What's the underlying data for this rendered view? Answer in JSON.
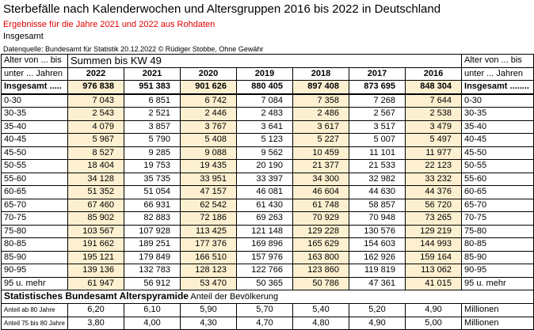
{
  "header": {
    "title": "Sterbefälle nach Kalenderwochen und Altersgruppen 2016 bis 2022 in Deutschland",
    "subtitle": "Ergebnisse für die Jahre 2021 und 2022 aus Rohdaten",
    "label": "Insgesamt",
    "source": "Datenquelle: Bundesamt für Statistik 20.12.2022 © Rüdiger Stobbe, Ohne Gewähr"
  },
  "table": {
    "corner_top": "Alter von ... bis",
    "corner_bottom": "unter ... Jahren",
    "group": "Summen bis KW 49",
    "years": [
      "2022",
      "2021",
      "2020",
      "2019",
      "2018",
      "2017",
      "2016"
    ],
    "right_top": "Alter von ... bis",
    "right_bottom": "unter ... Jahren",
    "rows": [
      [
        "Insgesamt .....",
        "976 838",
        "951 383",
        "901 626",
        "880 405",
        "897 408",
        "873 695",
        "848 304",
        "Insgesamt ........"
      ],
      [
        "0-30",
        "7 043",
        "6 851",
        "6 742",
        "7 084",
        "7 358",
        "7 268",
        "7 644",
        "0-30"
      ],
      [
        "30-35",
        "2 543",
        "2 521",
        "2 446",
        "2 483",
        "2 486",
        "2 567",
        "2 538",
        "30-35"
      ],
      [
        "35-40",
        "4 079",
        "3 857",
        "3 767",
        "3 641",
        "3 617",
        "3 517",
        "3 479",
        "35-40"
      ],
      [
        "40-45",
        "5 967",
        "5 790",
        "5 408",
        "5 123",
        "5 227",
        "5 007",
        "5 497",
        "40-45"
      ],
      [
        "45-50",
        "8 527",
        "9 285",
        "9 088",
        "9 562",
        "10 459",
        "11 101",
        "11 977",
        "45-50"
      ],
      [
        "50-55",
        "18 404",
        "19 753",
        "19 435",
        "20 190",
        "21 377",
        "21 533",
        "22 123",
        "50-55"
      ],
      [
        "55-60",
        "34 128",
        "35 735",
        "33 951",
        "33 397",
        "34 300",
        "32 982",
        "33 232",
        "55-60"
      ],
      [
        "60-65",
        "51 352",
        "51 054",
        "47 157",
        "46 081",
        "46 604",
        "44 630",
        "44 376",
        "60-65"
      ],
      [
        "65-70",
        "67 460",
        "66 931",
        "62 542",
        "61 430",
        "61 748",
        "58 857",
        "56 720",
        "65-70"
      ],
      [
        "70-75",
        "85 902",
        "82 883",
        "72 186",
        "69 263",
        "70 929",
        "70 948",
        "73 265",
        "70-75"
      ],
      [
        "75-80",
        "103 567",
        "107 928",
        "113 425",
        "121 148",
        "129 228",
        "130 576",
        "129 219",
        "75-80"
      ],
      [
        "80-85",
        "191 662",
        "189 251",
        "177 376",
        "169 896",
        "165 629",
        "154 603",
        "144 993",
        "80-85"
      ],
      [
        "85-90",
        "195 121",
        "179 849",
        "166 510",
        "157 976",
        "163 800",
        "162 926",
        "159 164",
        "85-90"
      ],
      [
        "90-95",
        "139 136",
        "132 783",
        "128 123",
        "122 766",
        "123 860",
        "119 819",
        "113 062",
        "90-95"
      ],
      [
        "95 u. mehr",
        "61 947",
        "56 912",
        "53 470",
        "50 365",
        "50 786",
        "47 361",
        "41 015",
        "95 u. mehr"
      ]
    ]
  },
  "pyramid": {
    "title": "Statistisches Bundesamt Alterspyramide",
    "subtitle": "Anteil der Bevölkerung",
    "rows": [
      [
        "Anteil ab 80 Jahre",
        "6,20",
        "6,10",
        "5,90",
        "5,70",
        "5,40",
        "5,20",
        "4,90",
        "Millionen"
      ],
      [
        "Anteil 75 bis 80 Jahre",
        "3,80",
        "4,00",
        "4,30",
        "4,70",
        "4,80",
        "4,90",
        "5,00",
        "Millionen"
      ]
    ]
  }
}
